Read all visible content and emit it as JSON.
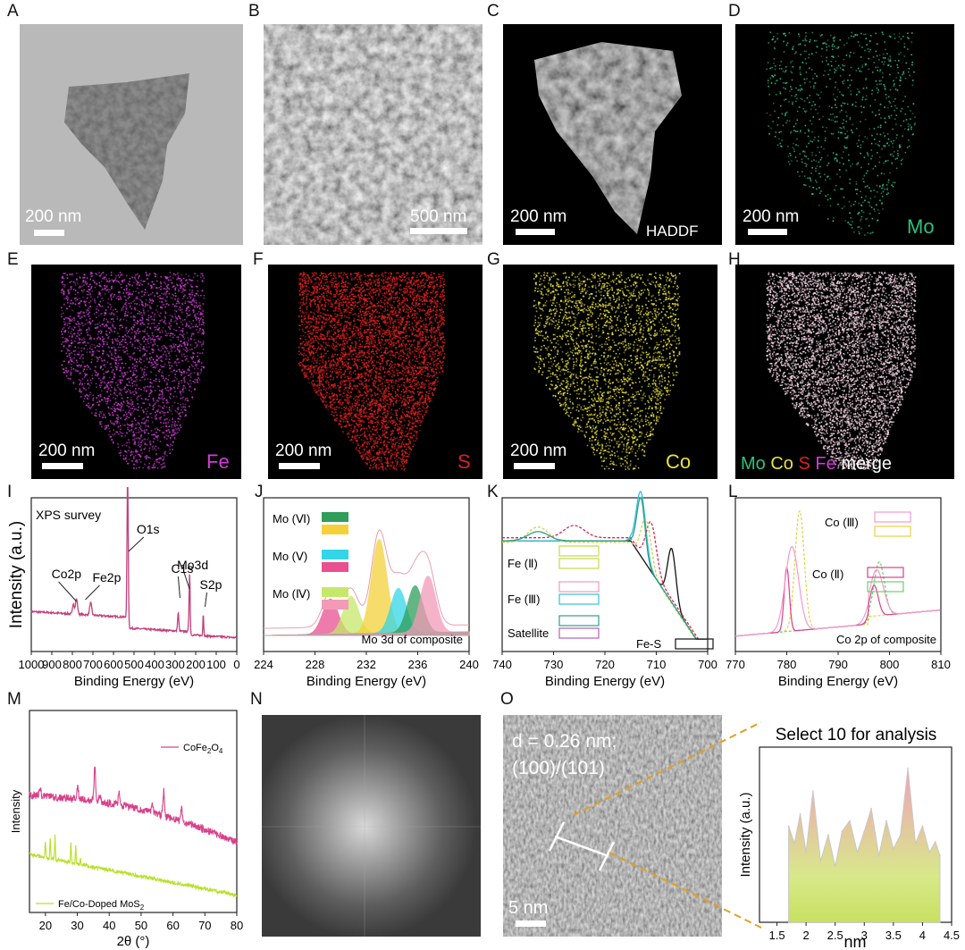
{
  "panels": {
    "A": {
      "label": "A",
      "scale": "200 nm"
    },
    "B": {
      "label": "B",
      "scale": "500 nm"
    },
    "C": {
      "label": "C",
      "scale": "200 nm",
      "tag": "HADDF"
    },
    "D": {
      "label": "D",
      "scale": "200 nm",
      "element": "Mo",
      "element_color": "#2ec27e"
    },
    "E": {
      "label": "E",
      "scale": "200 nm",
      "element": "Fe",
      "element_color": "#d23bd8"
    },
    "F": {
      "label": "F",
      "scale": "200 nm",
      "element": "S",
      "element_color": "#e02020"
    },
    "G": {
      "label": "G",
      "scale": "200 nm",
      "element": "Co",
      "element_color": "#e9e33a"
    },
    "H": {
      "label": "H",
      "merge": [
        {
          "text": "Mo",
          "color": "#2ec27e"
        },
        {
          "text": "Co",
          "color": "#e9e33a"
        },
        {
          "text": "S",
          "color": "#e02020"
        },
        {
          "text": "Fe",
          "color": "#d23bd8"
        },
        {
          "text": "merge",
          "color": "#ffffff"
        }
      ]
    },
    "I": {
      "label": "I"
    },
    "J": {
      "label": "J"
    },
    "K": {
      "label": "K"
    },
    "L": {
      "label": "L"
    },
    "M": {
      "label": "M"
    },
    "N": {
      "label": "N"
    },
    "O": {
      "label": "O",
      "d_text": "d = 0.26 nm;",
      "plane_text": "(100)/(101)",
      "scale": "5 nm"
    }
  },
  "chart_data": [
    {
      "id": "I",
      "type": "line",
      "ylabel": "Intensity (a.u.)",
      "xlabel": "Binding Energy (eV)",
      "xlim": [
        1000,
        0
      ],
      "xticks": [
        1000,
        900,
        800,
        700,
        600,
        500,
        400,
        300,
        200,
        100,
        0
      ],
      "inner_title": "XPS survey",
      "annotations": [
        {
          "text": "O1s",
          "x": 531
        },
        {
          "text": "Co2p",
          "x": 780
        },
        {
          "text": "Fe2p",
          "x": 711
        },
        {
          "text": "C1s",
          "x": 285
        },
        {
          "text": "Mo3d",
          "x": 230
        },
        {
          "text": "S2p",
          "x": 163
        }
      ],
      "color": "#c2407a"
    },
    {
      "id": "J",
      "type": "area",
      "xlabel": "Binding Energy (eV)",
      "xlim": [
        224,
        240
      ],
      "xticks": [
        224,
        228,
        232,
        236,
        240
      ],
      "caption": "Mo 3d of composite",
      "legend": [
        {
          "text": "Mo (Ⅵ)",
          "colors": [
            "#2e9e5a",
            "#f4d13a"
          ]
        },
        {
          "text": "Mo (Ⅴ)",
          "colors": [
            "#33d6e8",
            "#e8508f"
          ]
        },
        {
          "text": "Mo (Ⅳ)",
          "colors": [
            "#c6e86a",
            "#f29ab7"
          ]
        }
      ],
      "peaks": [
        {
          "center": 229.2,
          "height": 0.3,
          "color": "#e8508f"
        },
        {
          "center": 230.8,
          "height": 0.32,
          "color": "#c6e86a"
        },
        {
          "center": 233.0,
          "height": 0.8,
          "color": "#f4d13a"
        },
        {
          "center": 234.5,
          "height": 0.38,
          "color": "#33d6e8"
        },
        {
          "center": 235.8,
          "height": 0.4,
          "color": "#2e9e5a"
        },
        {
          "center": 236.8,
          "height": 0.48,
          "color": "#f29ab7"
        }
      ]
    },
    {
      "id": "K",
      "type": "line",
      "xlabel": "Binding Energy (eV)",
      "xlim": [
        740,
        700
      ],
      "xticks": [
        740,
        730,
        720,
        710,
        700
      ],
      "legend": [
        {
          "text": "Fe (Ⅱ)",
          "colors": [
            "#c6d84a",
            "#c6d84a"
          ]
        },
        {
          "text": "Fe (Ⅲ)",
          "colors": [
            "#f29ab7",
            "#33c0d8"
          ]
        },
        {
          "text": "Satellite",
          "colors": [
            "#2e9e8a",
            "#b060c8"
          ]
        },
        {
          "text": "Fe-S",
          "colors": [
            "#111111"
          ]
        }
      ]
    },
    {
      "id": "L",
      "type": "line",
      "xlabel": "Binding Energy (eV)",
      "xlim": [
        770,
        810
      ],
      "xticks": [
        770,
        780,
        790,
        800,
        810
      ],
      "caption": "Co 2p of composite",
      "legend": [
        {
          "text": "Co (Ⅲ)",
          "colors": [
            "#f29ad0",
            "#e8d040"
          ]
        },
        {
          "text": "Co (Ⅱ)",
          "colors": [
            "#d8408a",
            "#6cd06a"
          ]
        }
      ]
    },
    {
      "id": "M",
      "type": "line",
      "ylabel": "Intensity",
      "xlabel": "2θ (°)",
      "xlim": [
        15,
        80
      ],
      "xticks": [
        20,
        30,
        40,
        50,
        60,
        70,
        80
      ],
      "series": [
        {
          "name": "CoFe",
          "sub": "2",
          "name2": "O",
          "sub2": "4",
          "color": "#d8408a"
        },
        {
          "name": "Fe/Co-Doped MoS",
          "sub": "2",
          "name2": "",
          "sub2": "",
          "color": "#b8e02a"
        }
      ]
    },
    {
      "id": "O2",
      "type": "area",
      "title": "Select 10 for analysis",
      "ylabel": "Intensity (a.u.)",
      "xlabel": "nm",
      "xlim": [
        1.2,
        4.5
      ],
      "xticks": [
        1.5,
        2.0,
        2.5,
        3.0,
        3.5,
        4.0,
        4.5
      ],
      "x": [
        1.7,
        1.8,
        1.9,
        2.0,
        2.12,
        2.25,
        2.38,
        2.5,
        2.62,
        2.75,
        2.88,
        3.0,
        3.12,
        3.25,
        3.38,
        3.5,
        3.62,
        3.75,
        3.88,
        4.0,
        4.12,
        4.22,
        4.3
      ],
      "y": [
        0.55,
        0.45,
        0.62,
        0.4,
        0.75,
        0.35,
        0.5,
        0.32,
        0.52,
        0.58,
        0.4,
        0.52,
        0.65,
        0.38,
        0.58,
        0.42,
        0.5,
        0.88,
        0.45,
        0.55,
        0.4,
        0.46,
        0.38
      ]
    }
  ]
}
